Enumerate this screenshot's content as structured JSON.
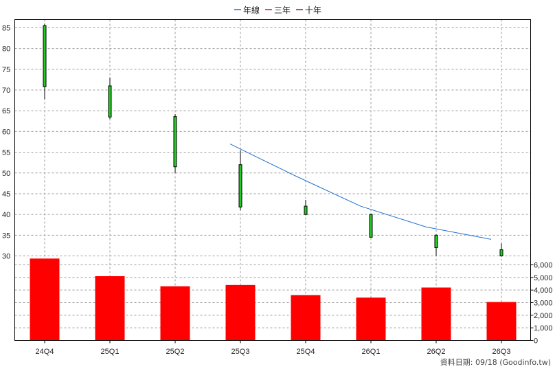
{
  "chart_data": {
    "type": "candlestick+bar",
    "legend": [
      {
        "label": "年線",
        "color": "#1f6fd1"
      },
      {
        "label": "三年",
        "color": "#d81818"
      },
      {
        "label": "十年",
        "color": "#8b1a4a"
      }
    ],
    "categories": [
      "24Q4",
      "25Q1",
      "25Q2",
      "25Q3",
      "25Q4",
      "26Q1",
      "26Q2",
      "26Q3"
    ],
    "price_axis": {
      "min": 28,
      "max": 87,
      "ticks": [
        30,
        35,
        40,
        45,
        50,
        55,
        60,
        65,
        70,
        75,
        80,
        85
      ]
    },
    "candles": [
      {
        "open": 70.8,
        "high": 86.0,
        "low": 67.8,
        "close": 85.5
      },
      {
        "open": 63.5,
        "high": 73.0,
        "low": 63.0,
        "close": 71.0
      },
      {
        "open": 51.5,
        "high": 64.2,
        "low": 50.0,
        "close": 63.6
      },
      {
        "open": 41.8,
        "high": 55.5,
        "low": 41.0,
        "close": 52.0
      },
      {
        "open": 40.0,
        "high": 43.5,
        "low": 39.8,
        "close": 42.0
      },
      {
        "open": 34.5,
        "high": 40.2,
        "low": 34.5,
        "close": 40.0
      },
      {
        "open": 32.0,
        "high": 35.2,
        "low": 30.0,
        "close": 35.0
      },
      {
        "open": 30.0,
        "high": 33.0,
        "low": 29.8,
        "close": 31.5
      }
    ],
    "annual_line": {
      "name": "年線",
      "start_index": 3,
      "values": [
        57.0,
        49.3,
        42.0,
        37.0,
        34.0
      ]
    },
    "volume_axis": {
      "min": 0,
      "max": 6500,
      "ticks": [
        0,
        1000,
        2000,
        3000,
        4000,
        5000,
        6000
      ],
      "tick_labels": [
        "0",
        "1,000",
        "2,000",
        "3,000",
        "4,000",
        "5,000",
        "6,000"
      ]
    },
    "volumes": [
      6500,
      5100,
      4300,
      4400,
      3600,
      3400,
      4200,
      3050
    ],
    "colors": {
      "candle_up": "#22cc22",
      "volume_bar": "#ff0000",
      "annual_line": "#1f6fd1"
    }
  },
  "footer": "資料日期: 09/18 (Goodinfo.tw)"
}
